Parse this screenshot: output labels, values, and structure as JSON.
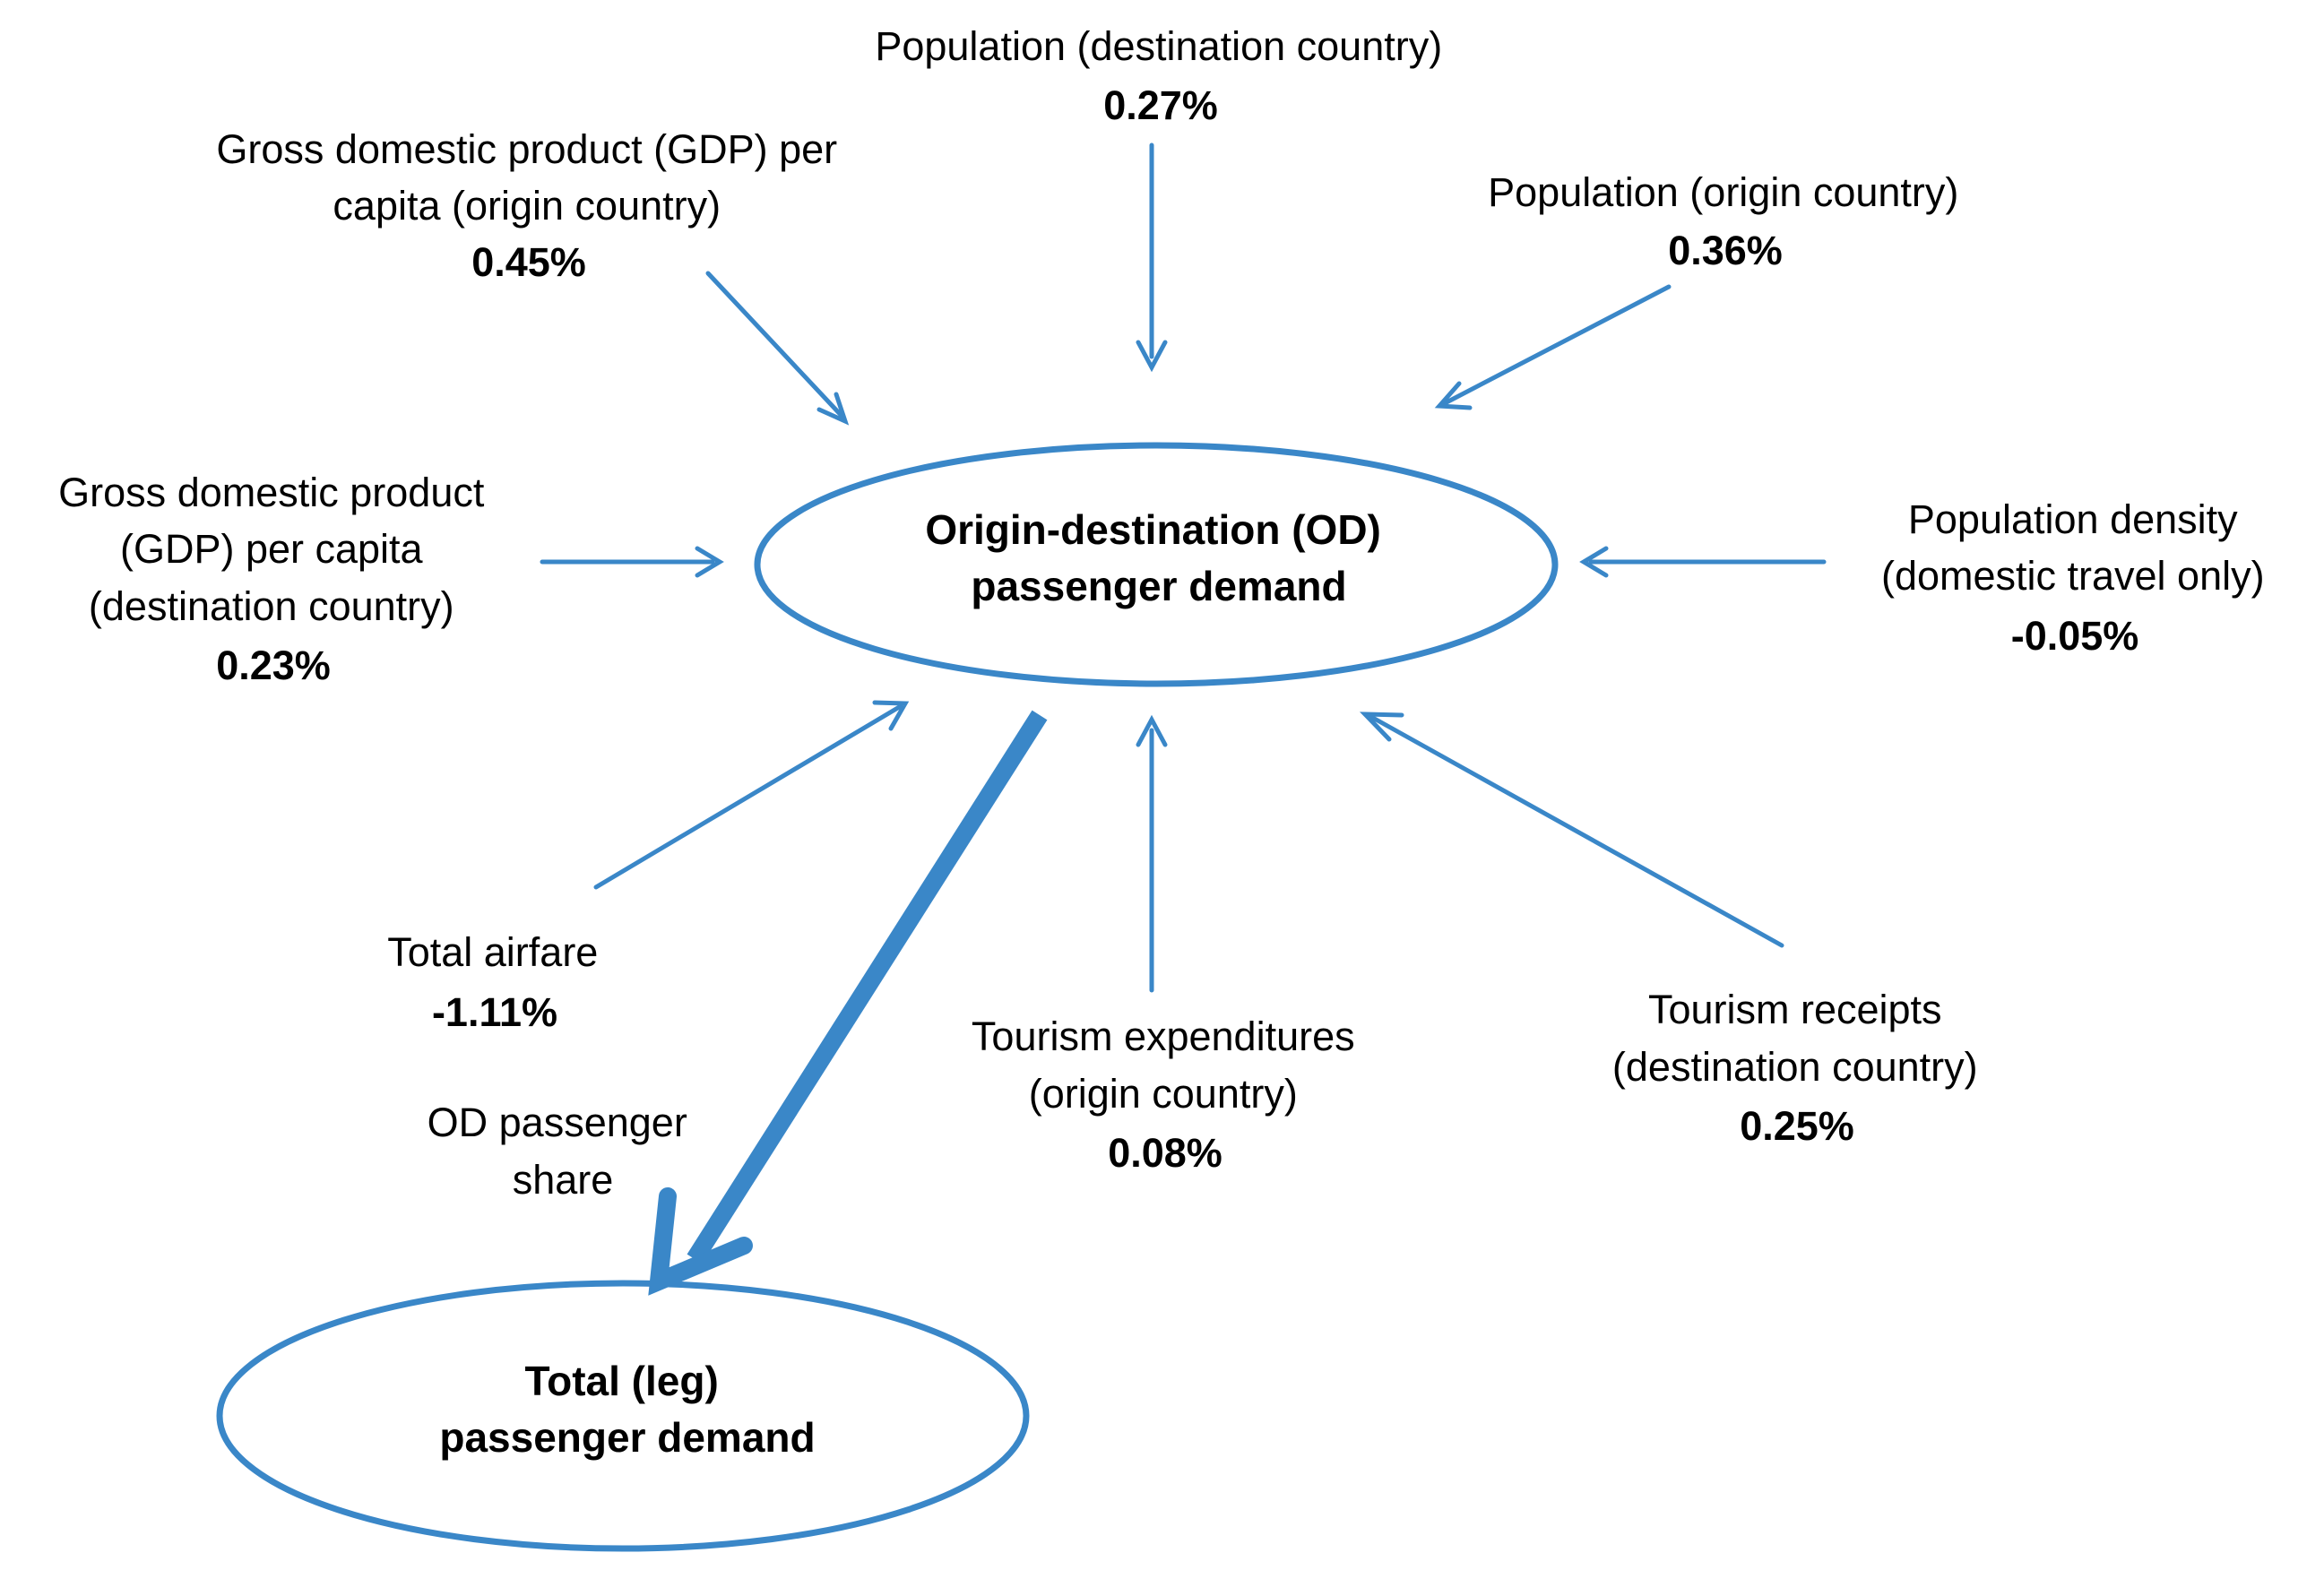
{
  "colors": {
    "arrow": "#3A87C8",
    "node_outline": "#3A87C8",
    "text": "#000000"
  },
  "nodes": {
    "od_demand": {
      "line1": "Origin-destination (OD)",
      "line2": "passenger demand"
    },
    "total_demand": {
      "line1": "Total (leg)",
      "line2": "passenger demand"
    }
  },
  "factors": {
    "population_destination": {
      "line1": "Population (destination country)",
      "value": "0.27%"
    },
    "gdp_origin": {
      "line1": "Gross domestic product (GDP) per",
      "line2": "capita (origin country)",
      "value": "0.45%"
    },
    "population_origin": {
      "line1": "Population (origin country)",
      "value": "0.36%"
    },
    "gdp_destination": {
      "line1": "Gross domestic product",
      "line2": "(GDP) per capita",
      "line3": "(destination country)",
      "value": "0.23%"
    },
    "population_density": {
      "line1": "Population density",
      "line2": "(domestic travel only)",
      "value": "-0.05%"
    },
    "total_airfare": {
      "line1": "Total airfare",
      "value": "-1.11%"
    },
    "tourism_expenditures": {
      "line1": "Tourism expenditures",
      "line2": "(origin country)",
      "value": "0.08%"
    },
    "tourism_receipts": {
      "line1": "Tourism receipts",
      "line2": "(destination country)",
      "value": "0.25%"
    }
  },
  "od_share": {
    "line1": "OD passenger",
    "line2": "share"
  }
}
